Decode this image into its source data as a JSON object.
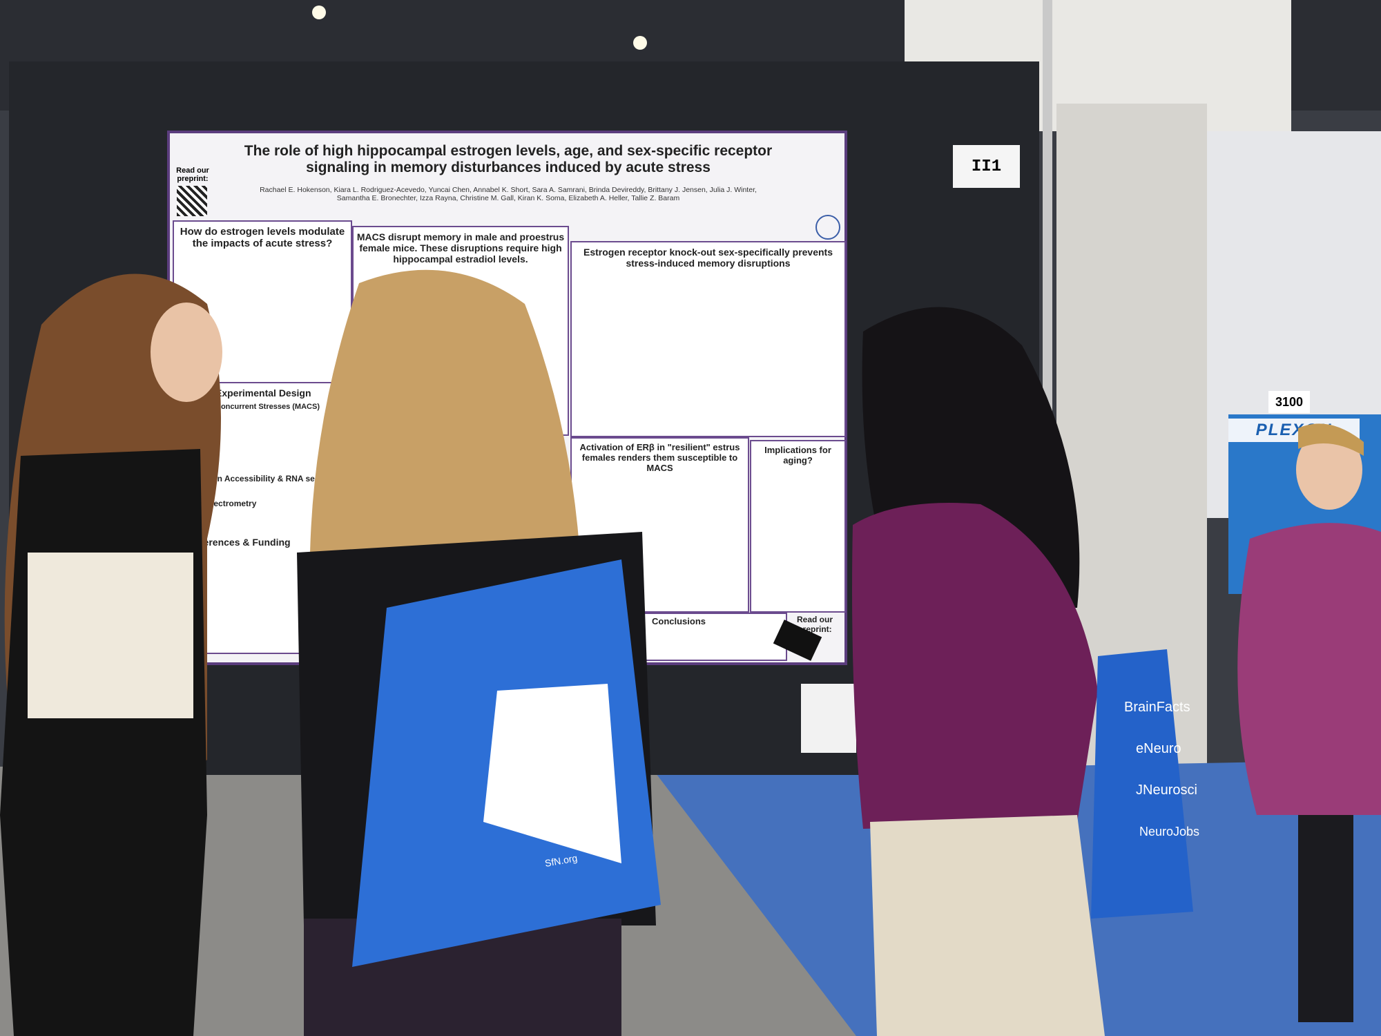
{
  "poster": {
    "preprint_label_top": "Read our preprint:",
    "title": "The role of high hippocampal estrogen levels, age, and sex-specific receptor signaling in memory disturbances induced by acute stress",
    "authors": "Rachael E. Hokenson, Kiara L. Rodriguez-Acevedo, Yuncai Chen, Annabel K. Short, Sara A. Samrani, Brinda Devireddy, Brittany J. Jensen, Julia J. Winter, Samantha E. Bronechter, Izza Rayna, Christine M. Gall, Kiran K. Soma, Elizabeth A. Heller, Tallie Z. Baram",
    "sections": [
      {
        "heading": "How do estrogen levels modulate the impacts of acute stress?"
      },
      {
        "heading": "MACS disrupt memory in male and proestrus female mice. These disruptions require high hippocampal estradiol levels."
      },
      {
        "heading": "Estrogen receptor knock-out sex-specifically prevents stress-induced memory disruptions"
      },
      {
        "heading": "Experimental Design"
      },
      {
        "heading": "Concurrent Stresses (MACS)"
      },
      {
        "heading": "Chromatin Accessibility & RNA seq"
      },
      {
        "heading": "Mass spectrometry"
      },
      {
        "heading": "References & Funding"
      },
      {
        "heading": "Activation of ERβ in \"resilient\" estrus females renders them susceptible to MACS"
      },
      {
        "heading": "Implications for aging?"
      },
      {
        "heading": "Conclusions"
      }
    ],
    "preprint_label_bottom": "Read our preprint:"
  },
  "booth_sign": "II1",
  "background": {
    "booth_number": "3100",
    "exhibitor": "PLEXON"
  },
  "bags": {
    "left_bag_url": "SfN.org",
    "right_bag_brands": [
      "BrainFacts",
      "eNeuro",
      "JNeurosci",
      "NeuroJobs"
    ]
  }
}
